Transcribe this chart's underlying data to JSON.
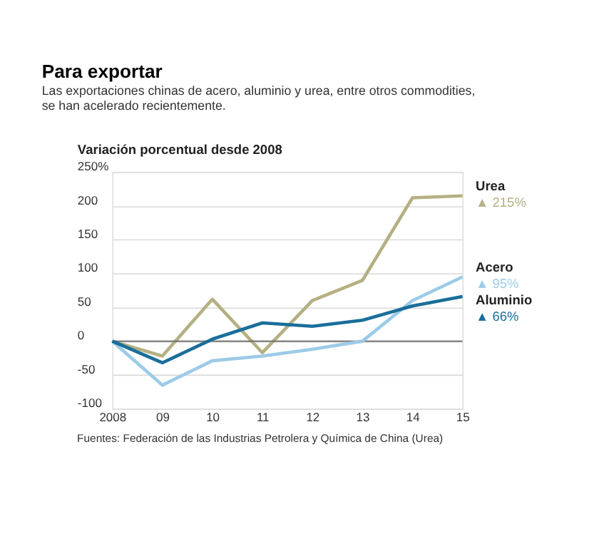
{
  "chart_data": {
    "type": "line",
    "title": "Para exportar",
    "subtitle": [
      "Las exportaciones chinas de acero, aluminio y urea, entre otros commodities,",
      "se han acelerado recientemente."
    ],
    "ylabel": "Variación porcentual desde 2008",
    "categories": [
      "2008",
      "09",
      "10",
      "11",
      "12",
      "13",
      "14",
      "15"
    ],
    "series": [
      {
        "name": "Urea",
        "color": "#b5b083",
        "values": [
          0,
          -22,
          62,
          -17,
          60,
          90,
          212,
          215
        ],
        "value_labels": [
          null,
          null,
          null,
          null,
          null,
          null,
          null,
          "▲ 215%"
        ]
      },
      {
        "name": "Acero",
        "color": "#9ccbe8",
        "values": [
          0,
          -65,
          -29,
          -22,
          -12,
          0,
          60,
          95
        ],
        "value_labels": [
          null,
          null,
          null,
          null,
          null,
          null,
          null,
          "▲ 95%"
        ]
      },
      {
        "name": "Aluminio",
        "color": "#1a6e9a",
        "values": [
          0,
          -32,
          3,
          27,
          22,
          31,
          52,
          66
        ],
        "value_labels": [
          null,
          null,
          null,
          null,
          null,
          null,
          null,
          "▲ 66%"
        ]
      }
    ],
    "ylim": [
      -100,
      250
    ],
    "yticks": [
      -100,
      -50,
      0,
      50,
      100,
      150,
      200,
      {
        "value": 250,
        "label": "250%"
      }
    ],
    "grid": "y",
    "ref_lines": [
      {
        "axis": "y",
        "value": 0,
        "color": "#666666"
      }
    ],
    "legend": false,
    "marker": "none",
    "line_style": "solid",
    "annotations": [
      "Fuentes: Federación de las Industrias Petrolera y Química de China (Urea)"
    ]
  }
}
